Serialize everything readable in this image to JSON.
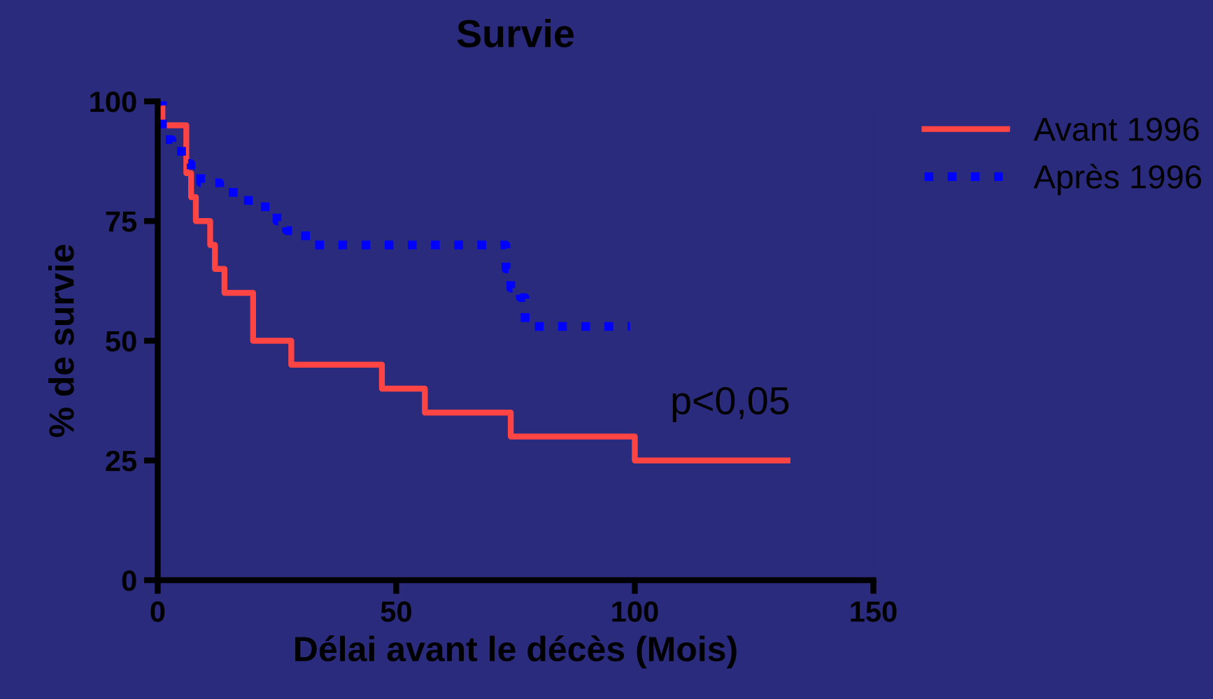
{
  "chart_data": {
    "type": "step",
    "title": "Survie",
    "xlabel": "Délai avant le décès (Mois)",
    "ylabel": "% de survie",
    "xlim": [
      0,
      150
    ],
    "xticks": [
      0,
      50,
      100,
      150
    ],
    "ylim": [
      0,
      100
    ],
    "yticks": [
      0,
      25,
      50,
      75,
      100
    ],
    "grid": false,
    "legend": "top right",
    "series": [
      {
        "name": "Avant 1996",
        "color": "#ff4444",
        "line_style": "solid",
        "x": [
          0,
          1,
          6,
          7,
          8,
          11,
          12,
          14,
          20,
          28,
          47,
          56,
          74,
          100,
          132
        ],
        "values": [
          100,
          95,
          85,
          80,
          75,
          70,
          65,
          60,
          50,
          45,
          40,
          35,
          30,
          25,
          25
        ]
      },
      {
        "name": "Après 1996",
        "color": "#0000ff",
        "line_style": "dotted",
        "x": [
          0,
          1,
          3,
          5,
          7,
          9,
          13,
          19,
          25,
          27,
          31,
          73,
          74,
          76,
          77,
          99
        ],
        "values": [
          100,
          92,
          91,
          87,
          85,
          83,
          81,
          78,
          75,
          73,
          70,
          65,
          61,
          59,
          53,
          53
        ]
      }
    ],
    "annotations": [
      "p<0,05"
    ]
  }
}
